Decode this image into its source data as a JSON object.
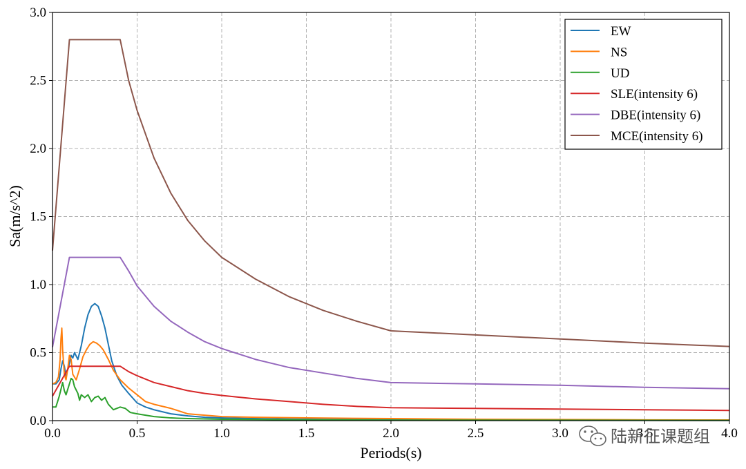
{
  "chart_data": {
    "type": "line",
    "xlabel": "Periods(s)",
    "ylabel": "Sa(m/s^2)",
    "xlim": [
      0,
      4.0
    ],
    "ylim": [
      0,
      3.0
    ],
    "xticks": [
      "0.0",
      "0.5",
      "1.0",
      "1.5",
      "2.0",
      "2.5",
      "3.0",
      "3.5",
      "4.0"
    ],
    "yticks": [
      "0.0",
      "0.5",
      "1.0",
      "1.5",
      "2.0",
      "2.5",
      "3.0"
    ],
    "grid": true,
    "legend_position": "top-right",
    "series": [
      {
        "name": "EW",
        "color": "#1f77b4",
        "x": [
          0,
          0.02,
          0.04,
          0.05,
          0.06,
          0.07,
          0.08,
          0.1,
          0.11,
          0.12,
          0.13,
          0.15,
          0.17,
          0.19,
          0.21,
          0.23,
          0.25,
          0.27,
          0.29,
          0.31,
          0.33,
          0.35,
          0.38,
          0.41,
          0.45,
          0.5,
          0.55,
          0.6,
          0.7,
          0.8,
          0.9,
          1.0,
          1.2,
          1.5,
          2.0,
          2.5,
          3.0,
          3.5,
          4.0
        ],
        "y": [
          0.27,
          0.27,
          0.3,
          0.38,
          0.44,
          0.4,
          0.33,
          0.42,
          0.48,
          0.46,
          0.5,
          0.45,
          0.55,
          0.68,
          0.78,
          0.84,
          0.86,
          0.84,
          0.77,
          0.68,
          0.56,
          0.44,
          0.33,
          0.26,
          0.2,
          0.13,
          0.1,
          0.08,
          0.05,
          0.035,
          0.025,
          0.02,
          0.015,
          0.01,
          0.007,
          0.005,
          0.004,
          0.003,
          0.003
        ]
      },
      {
        "name": "NS",
        "color": "#ff7f0e",
        "x": [
          0,
          0.02,
          0.035,
          0.045,
          0.05,
          0.055,
          0.06,
          0.07,
          0.08,
          0.09,
          0.1,
          0.11,
          0.12,
          0.14,
          0.16,
          0.18,
          0.2,
          0.22,
          0.24,
          0.26,
          0.28,
          0.3,
          0.33,
          0.36,
          0.4,
          0.45,
          0.5,
          0.55,
          0.6,
          0.7,
          0.8,
          0.9,
          1.0,
          1.2,
          1.5,
          2.0,
          2.5,
          3.0,
          3.5,
          4.0
        ],
        "y": [
          0.27,
          0.28,
          0.32,
          0.45,
          0.6,
          0.68,
          0.52,
          0.34,
          0.3,
          0.38,
          0.48,
          0.45,
          0.34,
          0.3,
          0.38,
          0.47,
          0.52,
          0.56,
          0.58,
          0.57,
          0.55,
          0.52,
          0.45,
          0.37,
          0.3,
          0.24,
          0.19,
          0.14,
          0.12,
          0.09,
          0.05,
          0.04,
          0.03,
          0.025,
          0.02,
          0.015,
          0.01,
          0.008,
          0.006,
          0.005
        ]
      },
      {
        "name": "UD",
        "color": "#2ca02c",
        "x": [
          0,
          0.02,
          0.04,
          0.06,
          0.07,
          0.08,
          0.1,
          0.11,
          0.12,
          0.13,
          0.15,
          0.16,
          0.17,
          0.19,
          0.21,
          0.23,
          0.25,
          0.27,
          0.29,
          0.31,
          0.33,
          0.36,
          0.4,
          0.43,
          0.46,
          0.5,
          0.55,
          0.6,
          0.7,
          0.8,
          1.0,
          1.5,
          2.0,
          3.0,
          4.0
        ],
        "y": [
          0.1,
          0.1,
          0.18,
          0.28,
          0.22,
          0.19,
          0.27,
          0.31,
          0.3,
          0.25,
          0.2,
          0.15,
          0.19,
          0.17,
          0.19,
          0.14,
          0.17,
          0.18,
          0.15,
          0.17,
          0.12,
          0.08,
          0.1,
          0.09,
          0.06,
          0.05,
          0.04,
          0.03,
          0.02,
          0.015,
          0.01,
          0.006,
          0.004,
          0.003,
          0.002
        ]
      },
      {
        "name": "SLE(intensity 6)",
        "color": "#d62728",
        "x": [
          0,
          0.1,
          0.4,
          0.45,
          0.5,
          0.6,
          0.7,
          0.8,
          0.9,
          1.0,
          1.2,
          1.4,
          1.6,
          1.8,
          2.0,
          2.5,
          3.0,
          3.5,
          4.0
        ],
        "y": [
          0.18,
          0.4,
          0.4,
          0.36,
          0.33,
          0.28,
          0.25,
          0.22,
          0.2,
          0.185,
          0.16,
          0.14,
          0.12,
          0.105,
          0.095,
          0.09,
          0.085,
          0.08,
          0.075
        ]
      },
      {
        "name": "DBE(intensity 6)",
        "color": "#9467bd",
        "x": [
          0,
          0.1,
          0.4,
          0.45,
          0.5,
          0.6,
          0.7,
          0.8,
          0.9,
          1.0,
          1.2,
          1.4,
          1.6,
          1.8,
          2.0,
          2.5,
          3.0,
          3.5,
          4.0
        ],
        "y": [
          0.54,
          1.2,
          1.2,
          1.1,
          0.99,
          0.84,
          0.73,
          0.65,
          0.58,
          0.53,
          0.45,
          0.39,
          0.35,
          0.31,
          0.28,
          0.27,
          0.26,
          0.245,
          0.235
        ]
      },
      {
        "name": "MCE(intensity 6)",
        "color": "#8c564b",
        "x": [
          0,
          0.1,
          0.4,
          0.45,
          0.5,
          0.6,
          0.7,
          0.8,
          0.9,
          1.0,
          1.2,
          1.4,
          1.6,
          1.8,
          2.0,
          2.5,
          3.0,
          3.5,
          4.0
        ],
        "y": [
          1.25,
          2.8,
          2.8,
          2.5,
          2.28,
          1.93,
          1.67,
          1.47,
          1.32,
          1.2,
          1.04,
          0.91,
          0.81,
          0.73,
          0.66,
          0.63,
          0.6,
          0.57,
          0.545
        ]
      }
    ]
  },
  "watermark": {
    "text": "陆新征课题组",
    "icon": "wechat-icon"
  }
}
